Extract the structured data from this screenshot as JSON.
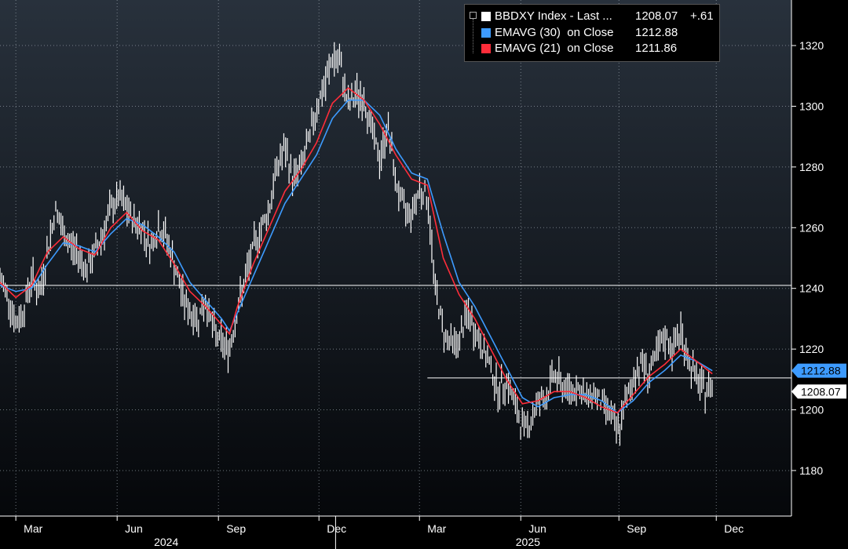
{
  "chart_data": {
    "type": "line",
    "y_axis": {
      "ticks": [
        1180,
        1200,
        1220,
        1240,
        1260,
        1280,
        1300,
        1320
      ],
      "range": [
        1165,
        1335
      ],
      "position": "right"
    },
    "x_axis": {
      "month_ticks": [
        "Mar",
        "Jun",
        "Sep",
        "Dec",
        "Mar",
        "Jun",
        "Sep",
        "Dec"
      ],
      "year_labels": [
        "2024",
        "2025"
      ]
    },
    "x_domain": [
      0,
      100
    ],
    "month_positions": [
      2,
      14.8,
      27.6,
      40.3,
      53,
      65.8,
      78.2,
      90.5
    ],
    "year_label_positions": [
      21,
      66.7
    ],
    "year_divider_position": 42.4,
    "reference_line": {
      "value": 1241
    },
    "last_price_line": {
      "value": 1210.5
    },
    "series": [
      {
        "name": "BBDXY Index - Last ...",
        "last": "1208.07",
        "change": "+.61",
        "color": "#ffffff",
        "style": "bars",
        "points": [
          [
            0,
            1243
          ],
          [
            1,
            1238
          ],
          [
            2,
            1228
          ],
          [
            3,
            1233
          ],
          [
            4,
            1244
          ],
          [
            5,
            1238
          ],
          [
            6,
            1252
          ],
          [
            7,
            1266
          ],
          [
            8,
            1258
          ],
          [
            9,
            1254
          ],
          [
            10,
            1251
          ],
          [
            11,
            1246
          ],
          [
            12,
            1252
          ],
          [
            13,
            1258
          ],
          [
            14,
            1266
          ],
          [
            15,
            1270
          ],
          [
            16,
            1266
          ],
          [
            17,
            1262
          ],
          [
            18,
            1260
          ],
          [
            19,
            1254
          ],
          [
            20,
            1260
          ],
          [
            21,
            1257
          ],
          [
            22,
            1248
          ],
          [
            23,
            1238
          ],
          [
            24,
            1232
          ],
          [
            25,
            1230
          ],
          [
            26,
            1236
          ],
          [
            27,
            1226
          ],
          [
            28,
            1222
          ],
          [
            29,
            1220
          ],
          [
            30,
            1233
          ],
          [
            31,
            1243
          ],
          [
            32,
            1253
          ],
          [
            33,
            1260
          ],
          [
            34,
            1266
          ],
          [
            35,
            1280
          ],
          [
            36,
            1286
          ],
          [
            37,
            1276
          ],
          [
            38,
            1280
          ],
          [
            39,
            1288
          ],
          [
            40,
            1300
          ],
          [
            41,
            1306
          ],
          [
            42,
            1316
          ],
          [
            43,
            1314
          ],
          [
            44,
            1300
          ],
          [
            45,
            1304
          ],
          [
            46,
            1302
          ],
          [
            47,
            1292
          ],
          [
            48,
            1282
          ],
          [
            49,
            1294
          ],
          [
            50,
            1275
          ],
          [
            51,
            1266
          ],
          [
            52,
            1265
          ],
          [
            53,
            1273
          ],
          [
            54,
            1270
          ],
          [
            55,
            1240
          ],
          [
            56,
            1226
          ],
          [
            57,
            1222
          ],
          [
            58,
            1222
          ],
          [
            59,
            1232
          ],
          [
            60,
            1226
          ],
          [
            61,
            1220
          ],
          [
            62,
            1214
          ],
          [
            63,
            1206
          ],
          [
            64,
            1210
          ],
          [
            65,
            1202
          ],
          [
            66,
            1194
          ],
          [
            67,
            1196
          ],
          [
            68,
            1203
          ],
          [
            69,
            1204
          ],
          [
            70,
            1212
          ],
          [
            71,
            1208
          ],
          [
            72,
            1206
          ],
          [
            73,
            1208
          ],
          [
            74,
            1203
          ],
          [
            75,
            1206
          ],
          [
            76,
            1202
          ],
          [
            77,
            1200
          ],
          [
            78,
            1192
          ],
          [
            79,
            1202
          ],
          [
            80,
            1210
          ],
          [
            81,
            1216
          ],
          [
            82,
            1212
          ],
          [
            83,
            1218
          ],
          [
            84,
            1224
          ],
          [
            85,
            1220
          ],
          [
            86,
            1226
          ],
          [
            87,
            1216
          ],
          [
            88,
            1210
          ],
          [
            89,
            1206
          ],
          [
            90,
            1208.07
          ]
        ]
      },
      {
        "name": "EMAVG (30)",
        "basis": "on Close",
        "last": "1212.88",
        "color": "#3d9bff",
        "style": "line",
        "points": [
          [
            0,
            1241
          ],
          [
            2,
            1239
          ],
          [
            4,
            1240
          ],
          [
            6,
            1248
          ],
          [
            8,
            1255
          ],
          [
            10,
            1254
          ],
          [
            12,
            1252
          ],
          [
            14,
            1258
          ],
          [
            16,
            1263
          ],
          [
            18,
            1261
          ],
          [
            20,
            1257
          ],
          [
            22,
            1252
          ],
          [
            24,
            1242
          ],
          [
            26,
            1236
          ],
          [
            28,
            1230
          ],
          [
            29,
            1226
          ],
          [
            30,
            1232
          ],
          [
            32,
            1244
          ],
          [
            34,
            1256
          ],
          [
            36,
            1268
          ],
          [
            38,
            1276
          ],
          [
            40,
            1284
          ],
          [
            42,
            1296
          ],
          [
            44,
            1302
          ],
          [
            46,
            1302
          ],
          [
            48,
            1297
          ],
          [
            50,
            1286
          ],
          [
            52,
            1278
          ],
          [
            54,
            1276
          ],
          [
            56,
            1258
          ],
          [
            58,
            1242
          ],
          [
            60,
            1234
          ],
          [
            62,
            1224
          ],
          [
            64,
            1214
          ],
          [
            66,
            1204
          ],
          [
            68,
            1201
          ],
          [
            70,
            1204
          ],
          [
            72,
            1205
          ],
          [
            74,
            1205
          ],
          [
            76,
            1203
          ],
          [
            78,
            1199
          ],
          [
            80,
            1203
          ],
          [
            82,
            1209
          ],
          [
            84,
            1213
          ],
          [
            86,
            1218
          ],
          [
            88,
            1216
          ],
          [
            90,
            1212.88
          ]
        ]
      },
      {
        "name": "EMAVG (21)",
        "basis": "on Close",
        "last": "1211.86",
        "color": "#ff2d3a",
        "style": "line",
        "points": [
          [
            0,
            1242
          ],
          [
            2,
            1237
          ],
          [
            4,
            1241
          ],
          [
            6,
            1252
          ],
          [
            8,
            1257
          ],
          [
            10,
            1253
          ],
          [
            12,
            1251
          ],
          [
            14,
            1260
          ],
          [
            16,
            1265
          ],
          [
            18,
            1259
          ],
          [
            20,
            1256
          ],
          [
            22,
            1248
          ],
          [
            24,
            1239
          ],
          [
            26,
            1234
          ],
          [
            28,
            1228
          ],
          [
            29,
            1225
          ],
          [
            30,
            1234
          ],
          [
            32,
            1248
          ],
          [
            34,
            1260
          ],
          [
            36,
            1272
          ],
          [
            38,
            1279
          ],
          [
            40,
            1288
          ],
          [
            42,
            1301
          ],
          [
            44,
            1306
          ],
          [
            46,
            1302
          ],
          [
            48,
            1294
          ],
          [
            50,
            1284
          ],
          [
            52,
            1276
          ],
          [
            54,
            1274
          ],
          [
            56,
            1250
          ],
          [
            58,
            1238
          ],
          [
            60,
            1230
          ],
          [
            62,
            1220
          ],
          [
            64,
            1210
          ],
          [
            66,
            1202
          ],
          [
            68,
            1203
          ],
          [
            70,
            1206
          ],
          [
            72,
            1206
          ],
          [
            74,
            1204
          ],
          [
            76,
            1201
          ],
          [
            78,
            1199
          ],
          [
            80,
            1205
          ],
          [
            82,
            1211
          ],
          [
            84,
            1215
          ],
          [
            86,
            1220
          ],
          [
            88,
            1216
          ],
          [
            90,
            1211.86
          ]
        ]
      }
    ],
    "colors": {
      "bg_top": "#28313c",
      "bg_bottom": "#05070a",
      "grid": "#9aa4ad",
      "axis": "#ffffff",
      "tag_blue": "#3d9bff"
    }
  }
}
